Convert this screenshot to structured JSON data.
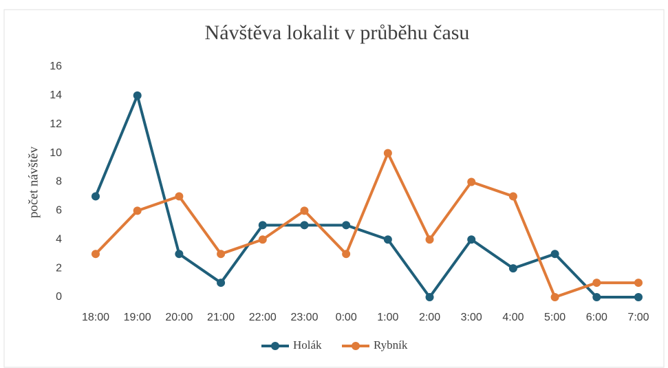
{
  "chart_data": {
    "type": "line",
    "title": "Návštěva lokalit v průběhu času",
    "y_label": "počet návštěv",
    "categories": [
      "18:00",
      "19:00",
      "20:00",
      "21:00",
      "22:00",
      "23:00",
      "0:00",
      "1:00",
      "2:00",
      "3:00",
      "4:00",
      "5:00",
      "6:00",
      "7:00"
    ],
    "series": [
      {
        "name": "Holák",
        "color": "#1f5f7a",
        "values": [
          7,
          14,
          3,
          1,
          5,
          5,
          5,
          4,
          0,
          4,
          2,
          3,
          0,
          0
        ]
      },
      {
        "name": "Rybník",
        "color": "#e07b39",
        "values": [
          3,
          6,
          7,
          3,
          4,
          6,
          3,
          10,
          4,
          8,
          7,
          0,
          1,
          1
        ]
      }
    ],
    "ylim": [
      0,
      16
    ],
    "yticks": [
      0,
      2,
      4,
      6,
      8,
      10,
      12,
      14,
      16
    ],
    "grid": false,
    "legend": "bottom"
  }
}
